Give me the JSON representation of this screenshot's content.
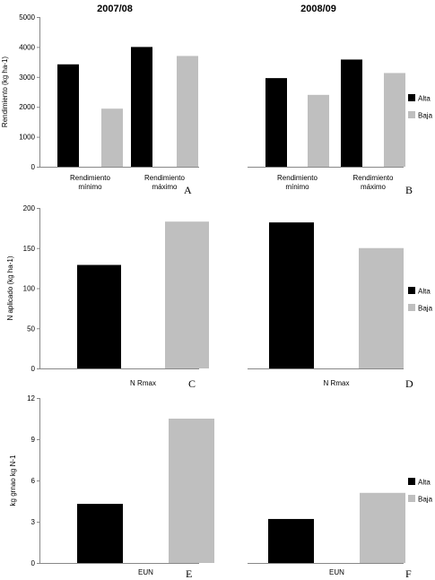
{
  "column_titles": [
    "2007/08",
    "2008/09"
  ],
  "colors": {
    "alta": "#000000",
    "baja": "#bfbfbf",
    "axis": "#888888"
  },
  "chart_data": [
    {
      "id": "A",
      "type": "bar",
      "panel_label": "A",
      "categories": [
        [
          "Rendimiento",
          "mínimo"
        ],
        [
          "Rendimiento",
          "máximo"
        ]
      ],
      "series": [
        {
          "name": "Alta",
          "values": [
            3420,
            4000
          ]
        },
        {
          "name": "Baja",
          "values": [
            1940,
            3700
          ]
        }
      ],
      "ylabel": "Rendimiento (kg ha-1)",
      "ylim": [
        0,
        5000
      ],
      "yticks": [
        0,
        1000,
        2000,
        3000,
        4000,
        5000
      ]
    },
    {
      "id": "B",
      "type": "bar",
      "panel_label": "B",
      "categories": [
        [
          "Rendimiento",
          "mínimo"
        ],
        [
          "Rendimiento",
          "máximo"
        ]
      ],
      "series": [
        {
          "name": "Alta",
          "values": [
            2960,
            3580
          ]
        },
        {
          "name": "Baja",
          "values": [
            2400,
            3130
          ]
        }
      ],
      "ylim": [
        0,
        5000
      ],
      "legend": [
        {
          "label": "Alta"
        },
        {
          "label": "Baja"
        }
      ]
    },
    {
      "id": "C",
      "type": "bar",
      "panel_label": "C",
      "categories": [
        "N Rmax"
      ],
      "series": [
        {
          "name": "Alta",
          "values": [
            129
          ]
        },
        {
          "name": "Baja",
          "values": [
            183
          ]
        }
      ],
      "ylabel": "N aplicado (kg ha-1)",
      "ylim": [
        0,
        200
      ],
      "yticks": [
        0,
        50,
        100,
        150,
        200
      ]
    },
    {
      "id": "D",
      "type": "bar",
      "panel_label": "D",
      "categories": [
        "N Rmax"
      ],
      "series": [
        {
          "name": "Alta",
          "values": [
            182
          ]
        },
        {
          "name": "Baja",
          "values": [
            150
          ]
        }
      ],
      "ylim": [
        0,
        200
      ],
      "legend": [
        {
          "label": "Alta"
        },
        {
          "label": "Baja"
        }
      ]
    },
    {
      "id": "E",
      "type": "bar",
      "panel_label": "E",
      "categories": [
        "EUN"
      ],
      "series": [
        {
          "name": "Alta",
          "values": [
            4.3
          ]
        },
        {
          "name": "Baja",
          "values": [
            10.5
          ]
        }
      ],
      "ylabel": "kg grnao kg N-1",
      "ylim": [
        0,
        12
      ],
      "yticks": [
        0,
        3,
        6,
        9,
        12
      ]
    },
    {
      "id": "F",
      "type": "bar",
      "panel_label": "F",
      "categories": [
        "EUN"
      ],
      "series": [
        {
          "name": "Alta",
          "values": [
            3.2
          ]
        },
        {
          "name": "Baja",
          "values": [
            5.1
          ]
        }
      ],
      "ylim": [
        0,
        12
      ],
      "legend": [
        {
          "label": "Alta"
        },
        {
          "label": "Baja"
        }
      ]
    }
  ]
}
